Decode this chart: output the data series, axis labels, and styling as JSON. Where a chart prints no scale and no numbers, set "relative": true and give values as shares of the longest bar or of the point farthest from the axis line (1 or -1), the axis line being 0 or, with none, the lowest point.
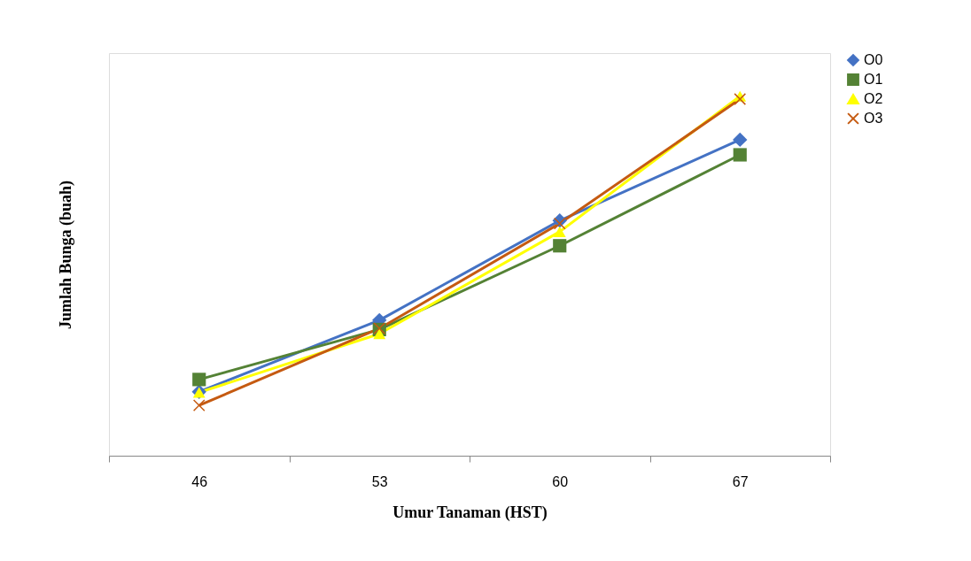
{
  "chart_data": {
    "type": "line",
    "relative": true,
    "xlabel": "Umur Tanaman (HST)",
    "ylabel": "Jumlah Bunga (buah)",
    "categories": [
      "46",
      "53",
      "60",
      "67"
    ],
    "legend": "right",
    "grid": false,
    "series": [
      {
        "name": "O0",
        "color": "#4472c4",
        "marker": "diamond",
        "values": [
          0.178,
          0.377,
          0.654,
          0.879
        ]
      },
      {
        "name": "O1",
        "color": "#548235",
        "marker": "square",
        "values": [
          0.212,
          0.351,
          0.584,
          0.837
        ]
      },
      {
        "name": "O2",
        "color": "#ffff00",
        "marker": "triangle",
        "values": [
          0.176,
          0.339,
          0.623,
          1
        ]
      },
      {
        "name": "O3",
        "color": "#c55a11",
        "marker": "cross",
        "values": [
          0.14,
          0.354,
          0.646,
          0.992
        ]
      }
    ]
  }
}
